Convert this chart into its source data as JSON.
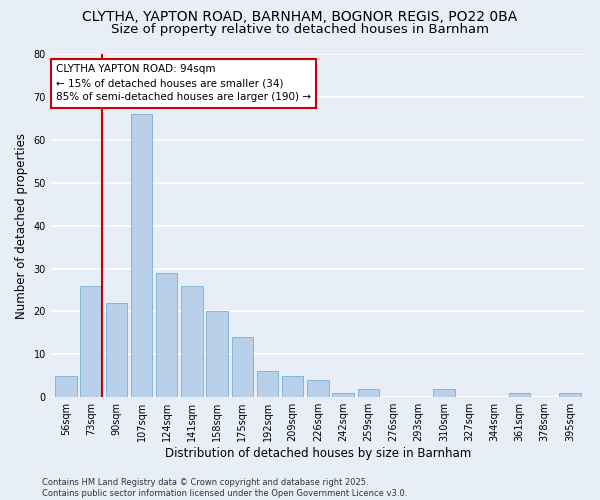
{
  "title": "CLYTHA, YAPTON ROAD, BARNHAM, BOGNOR REGIS, PO22 0BA",
  "subtitle": "Size of property relative to detached houses in Barnham",
  "xlabel": "Distribution of detached houses by size in Barnham",
  "ylabel": "Number of detached properties",
  "bar_labels": [
    "56sqm",
    "73sqm",
    "90sqm",
    "107sqm",
    "124sqm",
    "141sqm",
    "158sqm",
    "175sqm",
    "192sqm",
    "209sqm",
    "226sqm",
    "242sqm",
    "259sqm",
    "276sqm",
    "293sqm",
    "310sqm",
    "327sqm",
    "344sqm",
    "361sqm",
    "378sqm",
    "395sqm"
  ],
  "bar_values": [
    5,
    26,
    22,
    66,
    29,
    26,
    20,
    14,
    6,
    5,
    4,
    1,
    2,
    0,
    0,
    2,
    0,
    0,
    1,
    0,
    1
  ],
  "bar_color": "#b8d0ea",
  "bar_edge_color": "#7aafd4",
  "background_color": "#e8eef8",
  "grid_color": "#ffffff",
  "vline_color": "#cc0000",
  "annotation_text": "CLYTHA YAPTON ROAD: 94sqm\n← 15% of detached houses are smaller (34)\n85% of semi-detached houses are larger (190) →",
  "annotation_box_color": "#ffffff",
  "annotation_box_edge": "#cc0000",
  "ylim": [
    0,
    80
  ],
  "yticks": [
    0,
    10,
    20,
    30,
    40,
    50,
    60,
    70,
    80
  ],
  "footnote": "Contains HM Land Registry data © Crown copyright and database right 2025.\nContains public sector information licensed under the Open Government Licence v3.0.",
  "title_fontsize": 10,
  "subtitle_fontsize": 9.5,
  "axis_label_fontsize": 8.5,
  "tick_fontsize": 7,
  "annotation_fontsize": 7.5,
  "footnote_fontsize": 6
}
